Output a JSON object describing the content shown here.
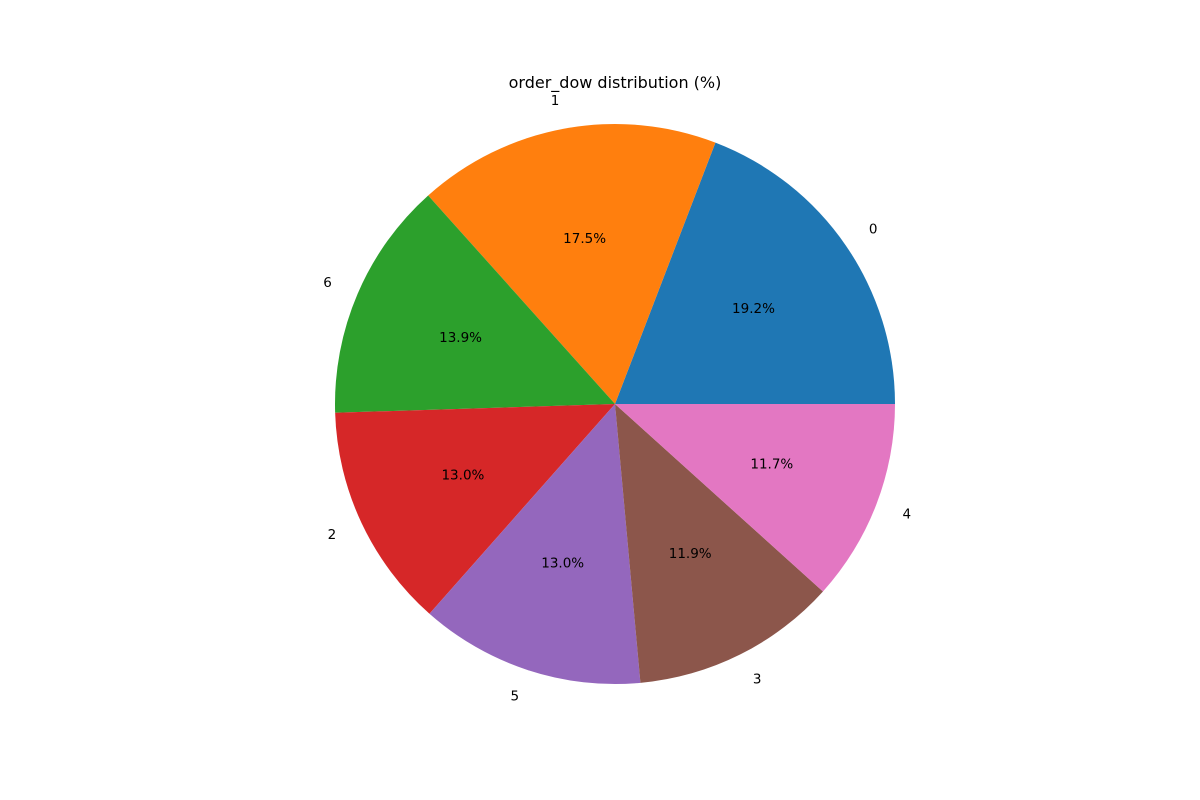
{
  "chart_data": {
    "type": "pie",
    "title": "order_dow distribution (%)",
    "start_angle_deg": 0,
    "direction": "counterclockwise",
    "slices": [
      {
        "label": "0",
        "value": 19.2,
        "pct_label": "19.2%",
        "color": "#1f77b4"
      },
      {
        "label": "1",
        "value": 17.5,
        "pct_label": "17.5%",
        "color": "#ff7f0e"
      },
      {
        "label": "6",
        "value": 13.9,
        "pct_label": "13.9%",
        "color": "#2ca02c"
      },
      {
        "label": "2",
        "value": 13.0,
        "pct_label": "13.0%",
        "color": "#d62728"
      },
      {
        "label": "5",
        "value": 13.0,
        "pct_label": "13.0%",
        "color": "#9467bd"
      },
      {
        "label": "3",
        "value": 11.9,
        "pct_label": "11.9%",
        "color": "#8c564b"
      },
      {
        "label": "4",
        "value": 11.7,
        "pct_label": "11.7%",
        "color": "#e377c2"
      }
    ]
  }
}
